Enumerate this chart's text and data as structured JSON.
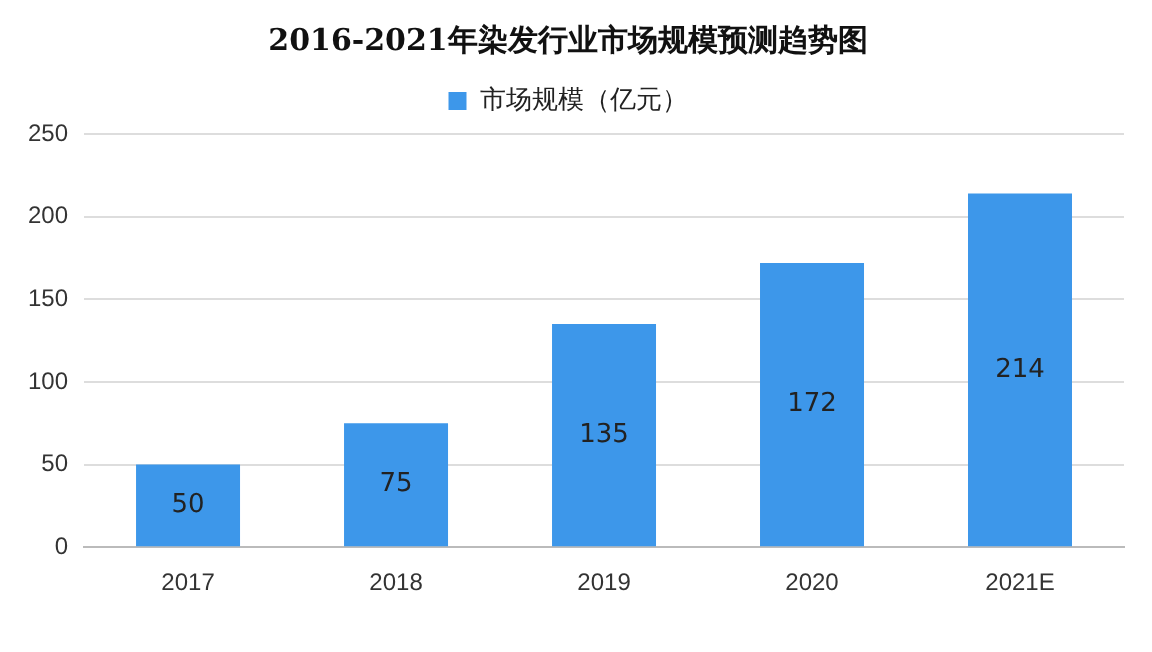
{
  "chart_data": {
    "type": "bar",
    "title": "2016-2021年染发行业市场规模预测趋势图",
    "categories": [
      "2017",
      "2018",
      "2019",
      "2020",
      "2021E"
    ],
    "series": [
      {
        "name": "市场规模（亿元）",
        "color": "#3d97ea",
        "values": [
          50,
          75,
          135,
          172,
          214
        ]
      }
    ],
    "ylim": [
      0,
      250
    ],
    "yticks": [
      0,
      50,
      100,
      150,
      200,
      250
    ],
    "grid": "y",
    "legend": "top",
    "data_labels": true
  }
}
